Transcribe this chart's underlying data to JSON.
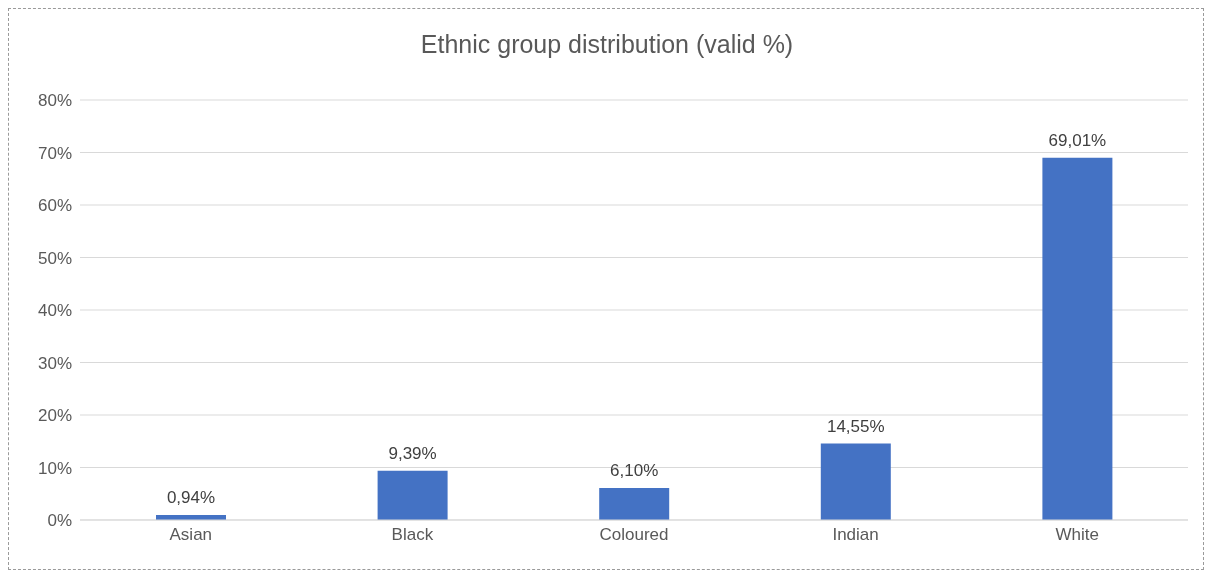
{
  "chart_data": {
    "type": "bar",
    "title": "Ethnic group distribution (valid %)",
    "categories": [
      "Asian",
      "Black",
      "Coloured",
      "Indian",
      "White"
    ],
    "values": [
      0.94,
      9.39,
      6.1,
      14.55,
      69.01
    ],
    "value_labels": [
      "0,94%",
      "9,39%",
      "6,10%",
      "14,55%",
      "69,01%"
    ],
    "color": "#4472c4",
    "ylim": [
      0,
      80
    ],
    "yticks": [
      {
        "value": 0,
        "label": "0%"
      },
      {
        "value": 10,
        "label": "10%"
      },
      {
        "value": 20,
        "label": "20%"
      },
      {
        "value": 30,
        "label": "30%"
      },
      {
        "value": 40,
        "label": "40%"
      },
      {
        "value": 50,
        "label": "50%"
      },
      {
        "value": 60,
        "label": "60%"
      },
      {
        "value": 70,
        "label": "70%"
      },
      {
        "value": 80,
        "label": "80%"
      }
    ],
    "grid": "y"
  }
}
